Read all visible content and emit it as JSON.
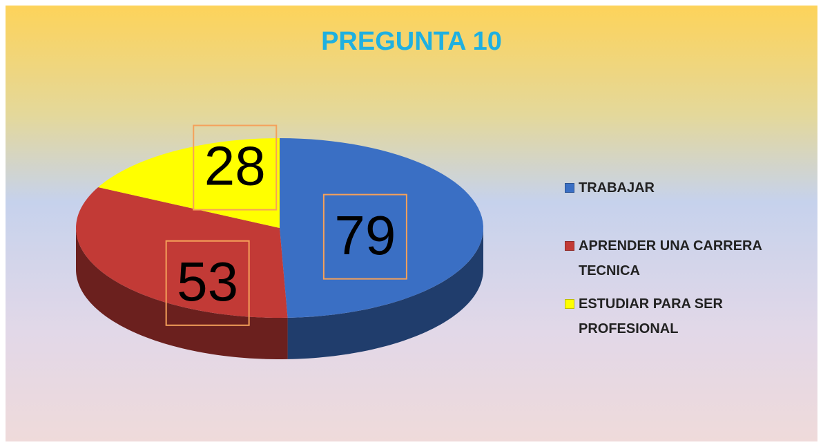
{
  "chart_data": {
    "type": "pie",
    "title": "PREGUNTA 10",
    "categories": [
      "TRABAJAR",
      "APRENDER UNA CARRERA TECNICA",
      "ESTUDIAR PARA SER PROFESIONAL"
    ],
    "values": [
      79,
      53,
      28
    ],
    "colors": [
      "#3a6fc4",
      "#c23a36",
      "#ffff00"
    ],
    "legend": "right"
  }
}
